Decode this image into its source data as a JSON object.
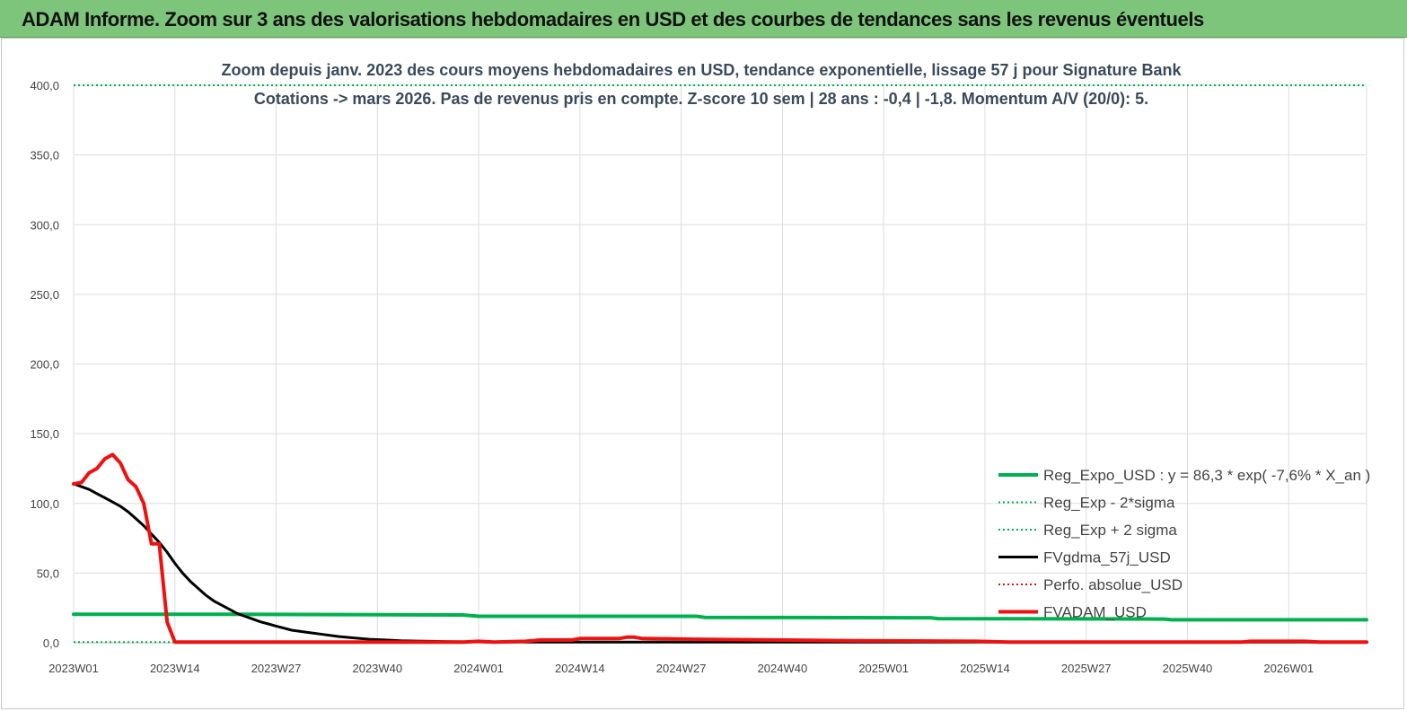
{
  "banner": {
    "title": "ADAM Informe. Zoom sur 3 ans des valorisations hebdomadaires en USD et des courbes de tendances sans les revenus éventuels"
  },
  "colors": {
    "banner_bg": "#7dc57a",
    "reg_expo": "#00b050",
    "fv_gdma": "#000000",
    "fvadam": "#ee1111",
    "perfo": "#dd1111",
    "grid": "#dddddd"
  },
  "chart_data": {
    "type": "line",
    "subtitle": [
      "Zoom depuis janv. 2023 des cours moyens hebdomadaires en USD, tendance exponentielle, lissage 57 j pour Signature Bank",
      "Cotations -> mars 2026. Pas de revenus pris en  compte. Z-score 10 sem  | 28 ans : -0,4  | -1,8. Momentum A/V (20/0): 5."
    ],
    "ylim": [
      0,
      400
    ],
    "y_ticks": [
      "0,0",
      "50,0",
      "100,0",
      "150,0",
      "200,0",
      "250,0",
      "300,0",
      "350,0",
      "400,0"
    ],
    "x_ticks": [
      "2023W01",
      "2023W14",
      "2023W27",
      "2023W40",
      "2024W01",
      "2024W14",
      "2024W27",
      "2024W40",
      "2025W01",
      "2025W14",
      "2025W27",
      "2025W40",
      "2026W01"
    ],
    "x_range_weeks": [
      0,
      166
    ],
    "grid": true,
    "legend_position": "bottom-right",
    "series": [
      {
        "name": "Reg_Expo_USD : y = 86,3 * exp( -7,6% *  X_an )",
        "style": "solid-thick",
        "color": "#00b050",
        "points": [
          [
            0,
            20.5
          ],
          [
            15,
            20.5
          ],
          [
            30,
            20.3
          ],
          [
            50,
            20
          ],
          [
            52,
            19
          ],
          [
            80,
            19
          ],
          [
            81,
            18.2
          ],
          [
            110,
            18
          ],
          [
            111,
            17.3
          ],
          [
            140,
            17
          ],
          [
            141,
            16.5
          ],
          [
            166,
            16.5
          ]
        ]
      },
      {
        "name": "Reg_Exp - 2*sigma",
        "style": "dotted",
        "color": "#00b050",
        "points": [
          [
            0,
            0.5
          ],
          [
            166,
            0.5
          ]
        ]
      },
      {
        "name": "Reg_Exp + 2 sigma",
        "style": "dotted",
        "color": "#00b050",
        "points": [
          [
            0,
            400
          ],
          [
            166,
            400
          ]
        ]
      },
      {
        "name": "FVgdma_57j_USD",
        "style": "solid",
        "color": "#000000",
        "points": [
          [
            0,
            114
          ],
          [
            1,
            112
          ],
          [
            2,
            110
          ],
          [
            3,
            107
          ],
          [
            4,
            104
          ],
          [
            5,
            101
          ],
          [
            6,
            98
          ],
          [
            7,
            94
          ],
          [
            8,
            89
          ],
          [
            9,
            84
          ],
          [
            10,
            78
          ],
          [
            11,
            72
          ],
          [
            12,
            65
          ],
          [
            13,
            57
          ],
          [
            14,
            50
          ],
          [
            15,
            44
          ],
          [
            16,
            39
          ],
          [
            17,
            34
          ],
          [
            18,
            30
          ],
          [
            19,
            27
          ],
          [
            20,
            24
          ],
          [
            21,
            21
          ],
          [
            22,
            19
          ],
          [
            23,
            17
          ],
          [
            24,
            15
          ],
          [
            25,
            13.5
          ],
          [
            26,
            12
          ],
          [
            27,
            10.5
          ],
          [
            28,
            9
          ],
          [
            30,
            7.5
          ],
          [
            32,
            6
          ],
          [
            34,
            4.5
          ],
          [
            36,
            3.5
          ],
          [
            38,
            2.5
          ],
          [
            40,
            2
          ],
          [
            42,
            1.5
          ],
          [
            44,
            1.2
          ],
          [
            46,
            1
          ],
          [
            48,
            0.8
          ],
          [
            52,
            0.6
          ],
          [
            60,
            0.5
          ],
          [
            80,
            0.5
          ],
          [
            100,
            0.5
          ],
          [
            130,
            0.5
          ],
          [
            166,
            0.5
          ]
        ]
      },
      {
        "name": "Perfo. absolue_USD",
        "style": "dotted",
        "color": "#dd1111",
        "points": [
          [
            14,
            0.5
          ],
          [
            166,
            0.5
          ]
        ]
      },
      {
        "name": "FVADAM_USD",
        "style": "solid-thick",
        "color": "#ee1111",
        "points": [
          [
            0,
            114
          ],
          [
            1,
            115
          ],
          [
            2,
            122
          ],
          [
            3,
            125
          ],
          [
            4,
            132
          ],
          [
            5,
            135
          ],
          [
            6,
            129
          ],
          [
            7,
            117
          ],
          [
            8,
            112
          ],
          [
            9,
            100
          ],
          [
            10,
            71
          ],
          [
            11,
            71
          ],
          [
            12,
            15
          ],
          [
            13,
            0.5
          ],
          [
            30,
            0.5
          ],
          [
            50,
            0.5
          ],
          [
            52,
            1
          ],
          [
            54,
            0.5
          ],
          [
            58,
            1
          ],
          [
            60,
            2
          ],
          [
            64,
            2
          ],
          [
            65,
            3
          ],
          [
            70,
            3
          ],
          [
            71,
            4
          ],
          [
            72,
            4
          ],
          [
            73,
            3
          ],
          [
            80,
            2.5
          ],
          [
            90,
            2
          ],
          [
            100,
            1.5
          ],
          [
            116,
            1
          ],
          [
            120,
            0.5
          ],
          [
            150,
            0.5
          ],
          [
            151,
            1
          ],
          [
            158,
            1
          ],
          [
            160,
            0.5
          ],
          [
            166,
            0.5
          ]
        ]
      }
    ]
  }
}
